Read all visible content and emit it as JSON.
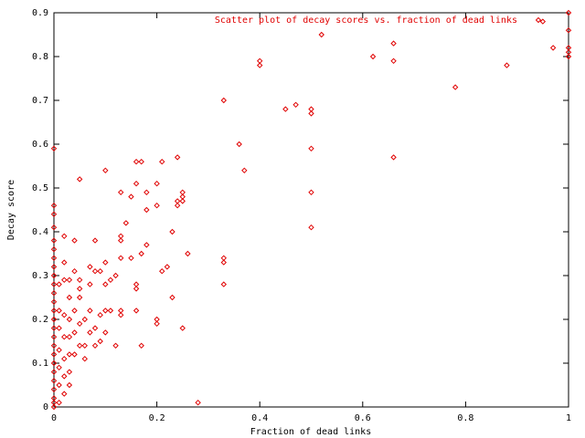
{
  "chart_data": {
    "type": "scatter",
    "xlabel": "Fraction of dead links",
    "ylabel": "Decay score",
    "xlim": [
      0,
      1
    ],
    "ylim": [
      0,
      0.9
    ],
    "xticks": [
      0,
      0.2,
      0.4,
      0.6,
      0.8,
      1
    ],
    "yticks": [
      0,
      0.1,
      0.2,
      0.3,
      0.4,
      0.5,
      0.6,
      0.7,
      0.8,
      0.9
    ],
    "grid": false,
    "legend": "top-right",
    "series": [
      {
        "name": "Scatter plot of decay scores vs. fraction of dead links",
        "color": "#e00000",
        "x": [
          0.52,
          0.62,
          0.66,
          0.66,
          0.66,
          0.78,
          0.88,
          0.95,
          0.97,
          1,
          1,
          1,
          1,
          1,
          0.4,
          0.4,
          0.33,
          0.45,
          0.47,
          0.5,
          0.5,
          0.5,
          0.5,
          0.5,
          0.36,
          0.37,
          0.33,
          0.33,
          0.33,
          0.28,
          0.25,
          0.25,
          0.25,
          0.25,
          0.24,
          0.24,
          0.24,
          0.26,
          0.23,
          0.23,
          0.22,
          0.21,
          0.21,
          0.2,
          0.2,
          0.2,
          0.2,
          0.18,
          0.18,
          0.18,
          0.17,
          0.17,
          0.17,
          0.16,
          0.16,
          0.16,
          0.16,
          0.16,
          0.15,
          0.15,
          0.14,
          0.13,
          0.13,
          0.13,
          0.13,
          0.13,
          0.13,
          0.12,
          0.12,
          0.11,
          0.11,
          0.1,
          0.1,
          0.1,
          0.1,
          0.1,
          0.09,
          0.09,
          0.09,
          0.08,
          0.08,
          0.08,
          0.08,
          0.07,
          0.07,
          0.07,
          0.07,
          0.06,
          0.06,
          0.06,
          0.05,
          0.05,
          0.05,
          0.05,
          0.05,
          0.05,
          0.04,
          0.04,
          0.04,
          0.04,
          0.04,
          0.03,
          0.03,
          0.03,
          0.03,
          0.03,
          0.03,
          0.03,
          0.02,
          0.02,
          0.02,
          0.02,
          0.02,
          0.02,
          0.02,
          0.02,
          0.01,
          0.01,
          0.01,
          0.01,
          0.01,
          0.01,
          0.01,
          0,
          0,
          0,
          0,
          0,
          0,
          0,
          0,
          0,
          0,
          0,
          0,
          0,
          0,
          0,
          0,
          0,
          0,
          0,
          0,
          0,
          0,
          0,
          0,
          0
        ],
        "values": [
          0.85,
          0.8,
          0.83,
          0.79,
          0.57,
          0.73,
          0.78,
          0.88,
          0.82,
          0.9,
          0.86,
          0.82,
          0.81,
          0.8,
          0.79,
          0.78,
          0.7,
          0.68,
          0.69,
          0.68,
          0.67,
          0.59,
          0.49,
          0.41,
          0.6,
          0.54,
          0.34,
          0.33,
          0.28,
          0.01,
          0.49,
          0.48,
          0.47,
          0.18,
          0.57,
          0.47,
          0.46,
          0.35,
          0.4,
          0.25,
          0.32,
          0.56,
          0.31,
          0.51,
          0.46,
          0.2,
          0.19,
          0.49,
          0.45,
          0.37,
          0.56,
          0.14,
          0.35,
          0.56,
          0.51,
          0.28,
          0.27,
          0.22,
          0.48,
          0.34,
          0.42,
          0.49,
          0.39,
          0.38,
          0.34,
          0.22,
          0.21,
          0.3,
          0.14,
          0.29,
          0.22,
          0.54,
          0.33,
          0.28,
          0.22,
          0.17,
          0.31,
          0.21,
          0.15,
          0.38,
          0.31,
          0.18,
          0.14,
          0.32,
          0.28,
          0.22,
          0.17,
          0.2,
          0.14,
          0.11,
          0.52,
          0.29,
          0.27,
          0.25,
          0.19,
          0.14,
          0.38,
          0.31,
          0.22,
          0.17,
          0.12,
          0.29,
          0.25,
          0.2,
          0.16,
          0.12,
          0.08,
          0.05,
          0.39,
          0.33,
          0.29,
          0.21,
          0.16,
          0.11,
          0.07,
          0.03,
          0.28,
          0.22,
          0.18,
          0.13,
          0.09,
          0.05,
          0.01,
          0.59,
          0.46,
          0.44,
          0.41,
          0.38,
          0.36,
          0.34,
          0.32,
          0.3,
          0.28,
          0.26,
          0.24,
          0.22,
          0.2,
          0.18,
          0.16,
          0.14,
          0.12,
          0.1,
          0.08,
          0.06,
          0.04,
          0.02,
          0.01,
          0
        ]
      }
    ]
  }
}
